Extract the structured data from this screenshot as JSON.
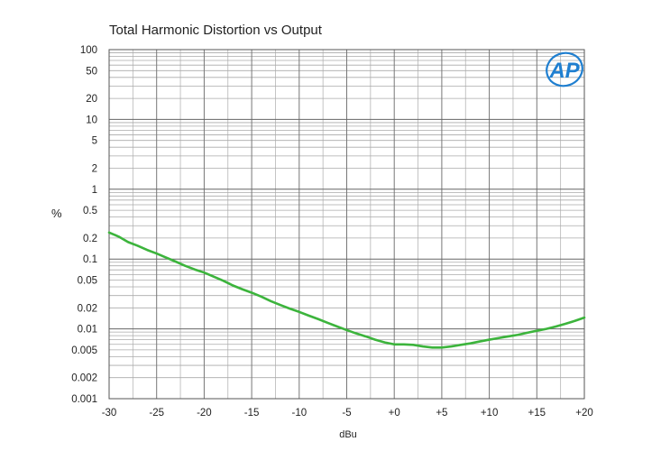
{
  "chart_data": {
    "type": "line",
    "title": "Total Harmonic Distortion vs Output",
    "xlabel": "dBu",
    "ylabel": "%",
    "xlim": [
      -30,
      20
    ],
    "ylim": [
      0.001,
      100
    ],
    "yscale": "log",
    "grid": true,
    "line_color": "#3cb43c",
    "logo_text": "AP",
    "logo_color": "#1f7fd0",
    "x_ticks": [
      {
        "value": -30,
        "label": "-30"
      },
      {
        "value": -25,
        "label": "-25"
      },
      {
        "value": -20,
        "label": "-20"
      },
      {
        "value": -15,
        "label": "-15"
      },
      {
        "value": -10,
        "label": "-10"
      },
      {
        "value": -5,
        "label": "-5"
      },
      {
        "value": 0,
        "label": "+0"
      },
      {
        "value": 5,
        "label": "+5"
      },
      {
        "value": 10,
        "label": "+10"
      },
      {
        "value": 15,
        "label": "+15"
      },
      {
        "value": 20,
        "label": "+20"
      }
    ],
    "y_ticks": [
      {
        "value": 100,
        "label": "100"
      },
      {
        "value": 50,
        "label": "50"
      },
      {
        "value": 20,
        "label": "20"
      },
      {
        "value": 10,
        "label": "10"
      },
      {
        "value": 5,
        "label": "5"
      },
      {
        "value": 2,
        "label": "2"
      },
      {
        "value": 1,
        "label": "1"
      },
      {
        "value": 0.5,
        "label": "0.5"
      },
      {
        "value": 0.2,
        "label": "0.2"
      },
      {
        "value": 0.1,
        "label": "0.1"
      },
      {
        "value": 0.05,
        "label": "0.05"
      },
      {
        "value": 0.02,
        "label": "0.02"
      },
      {
        "value": 0.01,
        "label": "0.01"
      },
      {
        "value": 0.005,
        "label": "0.005"
      },
      {
        "value": 0.002,
        "label": "0.002"
      },
      {
        "value": 0.001,
        "label": "0.001"
      }
    ],
    "series": [
      {
        "x": [
          -30,
          -29,
          -28,
          -27,
          -26,
          -25,
          -24,
          -23,
          -22,
          -21,
          -20,
          -19,
          -18,
          -17,
          -16,
          -15,
          -14,
          -13,
          -12,
          -11,
          -10,
          -9,
          -8,
          -7,
          -6,
          -5,
          -4,
          -3,
          -2,
          -1,
          0,
          1,
          2,
          3,
          4,
          5,
          6,
          7,
          8,
          9,
          10,
          11,
          12,
          13,
          14,
          15,
          16,
          17,
          18,
          19,
          20
        ],
        "y": [
          0.24,
          0.21,
          0.175,
          0.155,
          0.135,
          0.12,
          0.105,
          0.092,
          0.08,
          0.071,
          0.064,
          0.056,
          0.049,
          0.042,
          0.037,
          0.033,
          0.029,
          0.025,
          0.022,
          0.0195,
          0.0175,
          0.0155,
          0.0138,
          0.0122,
          0.0108,
          0.0096,
          0.0086,
          0.0078,
          0.007,
          0.0064,
          0.006,
          0.006,
          0.0059,
          0.0056,
          0.0054,
          0.0054,
          0.0056,
          0.0059,
          0.0062,
          0.0066,
          0.007,
          0.0074,
          0.0078,
          0.0082,
          0.0088,
          0.0094,
          0.01,
          0.0108,
          0.0118,
          0.013,
          0.0145
        ]
      }
    ]
  }
}
